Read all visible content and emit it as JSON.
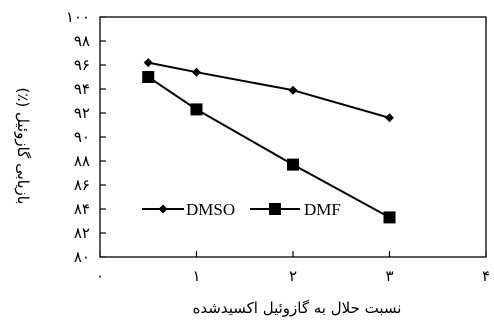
{
  "chart_data": {
    "type": "line",
    "title": "",
    "xlabel": "نسبت حلال به گازوئیل اکسیدشده",
    "ylabel": "بازیابی گازوئیل (٪)",
    "xlim": [
      0,
      4
    ],
    "ylim": [
      80,
      100
    ],
    "xticks": [
      0,
      1,
      2,
      3,
      4
    ],
    "yticks": [
      80,
      82,
      84,
      86,
      88,
      90,
      92,
      94,
      96,
      98,
      100
    ],
    "x_tick_labels": [
      "٠",
      "١",
      "٢",
      "٣",
      "۴"
    ],
    "y_tick_labels": [
      "٨٠",
      "٨٢",
      "٨۴",
      "٨۶",
      "٨٨",
      "٩٠",
      "٩٢",
      "٩۴",
      "٩۶",
      "٩٨",
      "١٠٠"
    ],
    "grid": false,
    "legend_position": "bottom-left",
    "series": [
      {
        "name": "DMSO",
        "marker": "diamond",
        "color": "#000000",
        "x": [
          0.5,
          1,
          2,
          3
        ],
        "y": [
          96.2,
          95.4,
          93.9,
          91.6
        ]
      },
      {
        "name": "DMF",
        "marker": "square",
        "color": "#000000",
        "x": [
          0.5,
          1,
          2,
          3
        ],
        "y": [
          95.0,
          92.3,
          87.7,
          83.3
        ]
      }
    ]
  }
}
